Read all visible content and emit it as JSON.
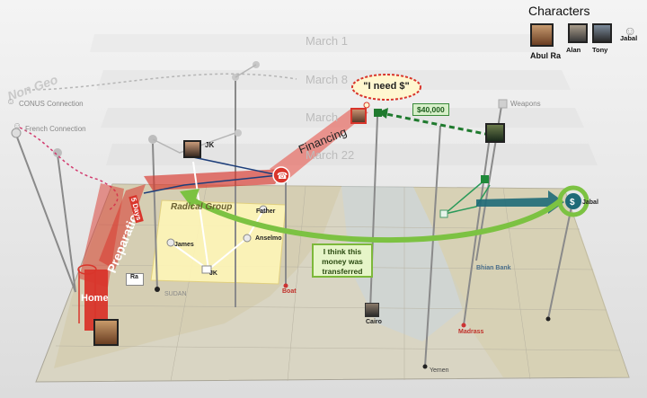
{
  "characters": {
    "title": "Characters",
    "items": [
      {
        "name": "Abul Ra"
      },
      {
        "name": "Alan"
      },
      {
        "name": "Tony"
      },
      {
        "name": "Jabal"
      }
    ]
  },
  "timeline": {
    "dates": [
      "March 1",
      "March 8",
      "March",
      "March 22"
    ]
  },
  "sidebar": {
    "non_geo": "Non Geo",
    "conus": "CONUS Connection",
    "french": "French Connection"
  },
  "labels": {
    "need_money": "\"I need $\"",
    "money": "$40,000",
    "weapons": "Weapons",
    "financing": "Financing",
    "preparation": "Preparation",
    "days": "5 Days",
    "home": "Home",
    "radical_group": "Radical Group",
    "jk_top": "JK",
    "father": "Father",
    "james": "James",
    "anselmo": "Anselmo",
    "jk_bottom": "JK",
    "ra": "Ra",
    "sudan": "SUDAN",
    "boat": "Boat",
    "cairo": "Cairo",
    "bhian_bank": "Bhian Bank",
    "madrass": "Madrass",
    "yemen": "Yemen",
    "jabal": "Jabal",
    "note": "I think this money was transferred"
  },
  "colors": {
    "flow_red": "#d9352b",
    "flow_green": "#7cc242",
    "money_green": "#2e8b3a",
    "link_blue": "#1d3e7a",
    "map_bg": "#d8d4c2",
    "panel_yellow": "#fff6b8"
  }
}
